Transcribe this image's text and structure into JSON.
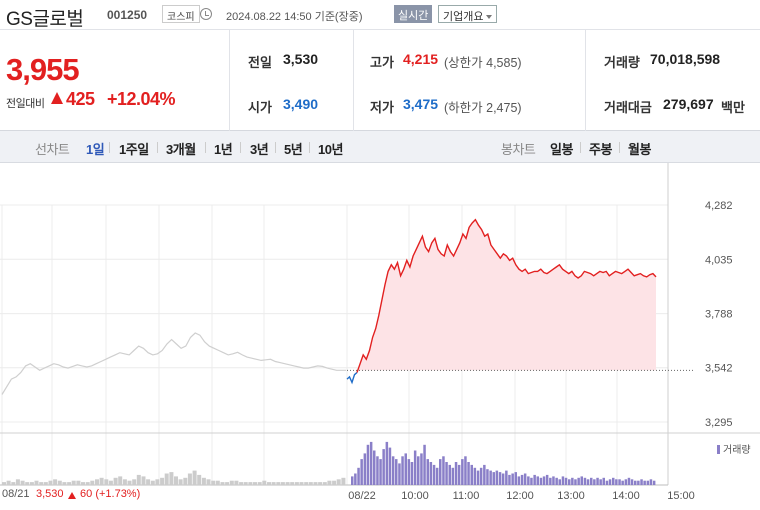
{
  "header": {
    "name": "GS글로벌",
    "code": "001250",
    "market": "코스피",
    "time": "2024.08.22 14:50 기준(장중)",
    "realtime_label": "실시간",
    "company_label": "기업개요"
  },
  "quote": {
    "price": "3,955",
    "change_label": "전일대비",
    "change": "425",
    "change_rate": "+12.04%",
    "prev_label": "전일",
    "prev_val": "3,530",
    "open_label": "시가",
    "open_val": "3,490",
    "high_label": "고가",
    "high_val": "4,215",
    "upper_limit": "(상한가 4,585)",
    "low_label": "저가",
    "low_val": "3,475",
    "lower_limit": "(하한가 2,475)",
    "volume_label": "거래량",
    "volume_val": "70,018,598",
    "amount_label": "거래대금",
    "amount_val": "279,697",
    "amount_unit": "백만"
  },
  "tabs": {
    "line_chart": "선차트",
    "periods": [
      "1일",
      "1주일",
      "3개월",
      "1년",
      "3년",
      "5년",
      "10년"
    ],
    "selected": "1일",
    "candle_chart": "봉차트",
    "candle_periods": [
      "일봉",
      "주봉",
      "월봉"
    ]
  },
  "colors": {
    "up": "#e22020",
    "down": "#1e6cc8",
    "prev_day_line": "#cfcfcf",
    "area_fill": "#fde3e6",
    "volume_today": "#8a7fc8",
    "volume_prev": "#cccccc"
  },
  "chart_data": {
    "type": "line",
    "y_ticks": [
      "4,282",
      "4,035",
      "3,788",
      "3,542",
      "3,295"
    ],
    "ylim": [
      3295,
      4282
    ],
    "x_ticks": [
      "08/22",
      "10:00",
      "11:00",
      "12:00",
      "13:00",
      "14:00",
      "15:00"
    ],
    "baseline": 3530,
    "legend": "거래량",
    "footer": {
      "date": "08/21",
      "close": "3,530",
      "change": "60",
      "change_rate": "(+1.73%)"
    },
    "series_prev_day": {
      "values": [
        3420,
        3455,
        3490,
        3500,
        3520,
        3550,
        3560,
        3545,
        3530,
        3540,
        3550,
        3560,
        3555,
        3545,
        3540,
        3548,
        3555,
        3550,
        3545,
        3550,
        3560,
        3570,
        3580,
        3590,
        3600,
        3610,
        3605,
        3600,
        3620,
        3640,
        3630,
        3610,
        3600,
        3605,
        3620,
        3650,
        3670,
        3650,
        3630,
        3640,
        3680,
        3700,
        3690,
        3660,
        3640,
        3630,
        3620,
        3610,
        3600,
        3605,
        3612,
        3600,
        3590,
        3585,
        3580,
        3575,
        3578,
        3580,
        3570,
        3565,
        3560,
        3555,
        3550,
        3545,
        3540,
        3540,
        3545,
        3550,
        3548,
        3540,
        3535,
        3530,
        3530,
        3530
      ]
    },
    "series_today_open": {
      "values": [
        3490,
        3500,
        3475,
        3510,
        3520
      ]
    },
    "series_today": {
      "values": [
        3520,
        3560,
        3600,
        3580,
        3620,
        3680,
        3720,
        3780,
        3850,
        3920,
        3980,
        4010,
        3990,
        4020,
        3960,
        3990,
        4030,
        4000,
        4050,
        4080,
        4110,
        4140,
        4090,
        4070,
        4110,
        4130,
        4080,
        4060,
        4050,
        4100,
        4070,
        4050,
        4080,
        4110,
        4150,
        4130,
        4180,
        4200,
        4215,
        4190,
        4170,
        4140,
        4150,
        4100,
        4080,
        4060,
        4040,
        4060,
        4050,
        4030,
        4040,
        4010,
        3990,
        3980,
        3990,
        3970,
        3975,
        3980,
        3980,
        3990,
        3975,
        3970,
        3980,
        3990,
        4000,
        4010,
        3990,
        3980,
        3970,
        3980,
        3960,
        3950,
        3960,
        3980,
        3975,
        3970,
        3960,
        3970,
        3980,
        3975,
        3980,
        3960,
        3970,
        3980,
        3975,
        3970,
        3980,
        3990,
        3975,
        3960,
        3965,
        3970,
        3960,
        3955,
        3965,
        3970,
        3955
      ]
    },
    "volume_prev_day": [
      2,
      3,
      2,
      4,
      3,
      2,
      2,
      3,
      2,
      2,
      3,
      4,
      3,
      2,
      2,
      3,
      3,
      2,
      2,
      3,
      4,
      5,
      4,
      3,
      5,
      6,
      4,
      3,
      4,
      7,
      6,
      4,
      3,
      4,
      5,
      8,
      9,
      6,
      4,
      5,
      8,
      10,
      7,
      5,
      4,
      3,
      3,
      2,
      2,
      3,
      3,
      2,
      2,
      2,
      2,
      2,
      3,
      2,
      2,
      2,
      2,
      2,
      2,
      2,
      2,
      2,
      2,
      2,
      2,
      2,
      3,
      3,
      4,
      5
    ],
    "volume_today": [
      6,
      8,
      12,
      18,
      22,
      28,
      30,
      24,
      20,
      18,
      25,
      30,
      26,
      20,
      18,
      15,
      20,
      22,
      18,
      16,
      24,
      20,
      22,
      28,
      18,
      16,
      14,
      12,
      18,
      20,
      16,
      14,
      12,
      16,
      14,
      18,
      20,
      16,
      14,
      12,
      10,
      12,
      14,
      11,
      10,
      9,
      10,
      9,
      8,
      10,
      7,
      8,
      9,
      6,
      7,
      8,
      6,
      5,
      7,
      6,
      5,
      6,
      7,
      5,
      6,
      5,
      4,
      6,
      5,
      4,
      5,
      4,
      5,
      6,
      5,
      4,
      5,
      4,
      5,
      4,
      5,
      3,
      4,
      5,
      4,
      4,
      3,
      4,
      5,
      4,
      3,
      3,
      4,
      3,
      3,
      4,
      3
    ]
  }
}
